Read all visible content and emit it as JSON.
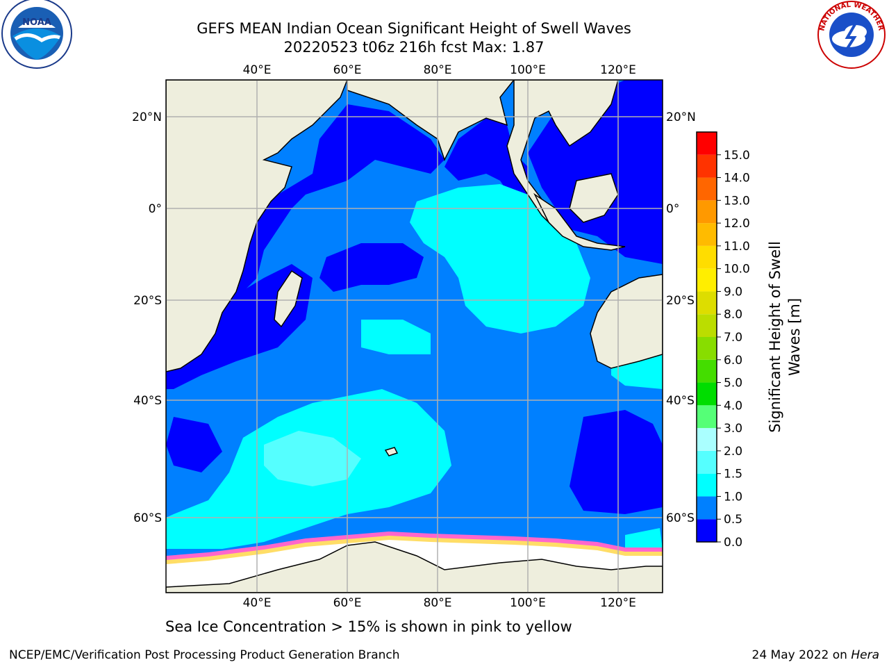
{
  "title": {
    "line1": "GEFS MEAN Indian Ocean Significant Height of Swell Waves",
    "line2": "20220523 t06z 216h fcst   Max: 1.87"
  },
  "logos": {
    "left": {
      "icon": "noaa-logo-icon",
      "text": "NOAA",
      "ring_text": "NATIONAL OCEANIC AND ATMOSPHERIC ADMINISTRATION · U.S. DEPARTMENT OF COMMERCE"
    },
    "right": {
      "icon": "national-weather-service-logo-icon",
      "ring_text": "NATIONAL WEATHER SERVICE"
    }
  },
  "map": {
    "lon_ticks_top": [
      "40°E",
      "60°E",
      "80°E",
      "100°E",
      "120°E"
    ],
    "lon_ticks_bottom": [
      "40°E",
      "60°E",
      "80°E",
      "100°E",
      "120°E"
    ],
    "lat_ticks_left": [
      "20°N",
      "0°",
      "20°S",
      "40°S",
      "60°S"
    ],
    "lat_ticks_right": [
      "20°N",
      "0°",
      "20°S",
      "40°S",
      "60°S"
    ],
    "colors": {
      "land": "#eeeedd",
      "ocean_0_05": "#0000ff",
      "ocean_05_10": "#0080ff",
      "ocean_10_15": "#00ffff",
      "ocean_15_20": "#55ffff",
      "sea_ice": "#ffffff",
      "ice_edge": "#ff66cc",
      "grid": "#b0b0b0"
    }
  },
  "colorbar": {
    "title_line1": "Significant Height of Swell",
    "title_line2": "Waves [m]",
    "tick_labels": [
      "0.0",
      "0.5",
      "1.0",
      "1.5",
      "2.0",
      "3.0",
      "4.0",
      "5.0",
      "6.0",
      "7.0",
      "8.0",
      "9.0",
      "10.0",
      "11.0",
      "12.0",
      "13.0",
      "14.0",
      "15.0"
    ],
    "colors": [
      "#0000ff",
      "#0080ff",
      "#00ffff",
      "#55ffff",
      "#aaffff",
      "#55ff77",
      "#00dd00",
      "#44dd00",
      "#88dd00",
      "#bbdd00",
      "#dddd00",
      "#ffee00",
      "#ffdd00",
      "#ffbb00",
      "#ff9900",
      "#ff6600",
      "#ff3300",
      "#ff0000"
    ]
  },
  "ice_note": "Sea Ice Concentration > 15% is shown in pink to yellow",
  "footer": {
    "left": "NCEP/EMC/Verification Post Processing Product Generation Branch",
    "right_date": "24 May 2022 on ",
    "right_machine": "Hera"
  }
}
